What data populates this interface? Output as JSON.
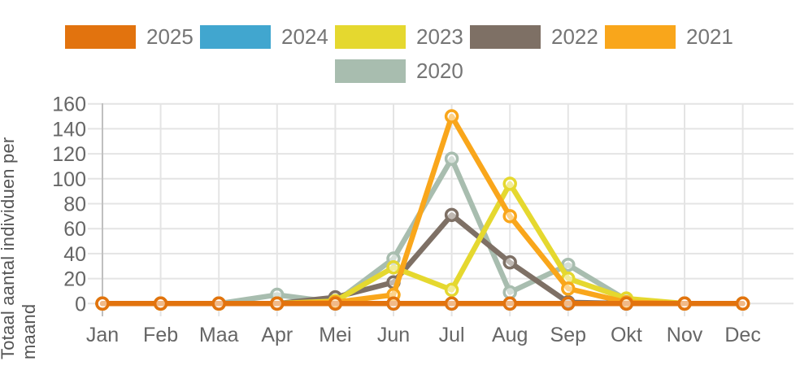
{
  "page": {
    "background": "#FFFFFF"
  },
  "legend": {
    "items": [
      {
        "label": "2025",
        "color": "#E2730E"
      },
      {
        "label": "2024",
        "color": "#41A6CF"
      },
      {
        "label": "2023",
        "color": "#E5D82F"
      },
      {
        "label": "2022",
        "color": "#7E7065"
      },
      {
        "label": "2021",
        "color": "#F9A61B"
      },
      {
        "label": "2020",
        "color": "#A8BDAF"
      }
    ]
  },
  "chart_data": {
    "type": "line",
    "title": "",
    "xlabel": "",
    "ylabel": "Totaal aantal individuen per maand",
    "categories": [
      "Jan",
      "Feb",
      "Maa",
      "Apr",
      "Mei",
      "Jun",
      "Jul",
      "Aug",
      "Sep",
      "Okt",
      "Nov",
      "Dec"
    ],
    "series": [
      {
        "name": "2025",
        "color": "#E2730E",
        "values": [
          0,
          0,
          0,
          0,
          0,
          0,
          0,
          0,
          0,
          0,
          0,
          0
        ]
      },
      {
        "name": "2024",
        "color": "#41A6CF",
        "values": [
          0,
          0,
          0,
          0,
          0,
          0,
          0,
          0,
          0,
          0,
          0,
          0
        ]
      },
      {
        "name": "2023",
        "color": "#E5D82F",
        "values": [
          0,
          0,
          0,
          0,
          2,
          29,
          11,
          96,
          20,
          4,
          0,
          0
        ]
      },
      {
        "name": "2022",
        "color": "#7E7065",
        "values": [
          0,
          0,
          0,
          0,
          5,
          17,
          71,
          33,
          1,
          0,
          0,
          0
        ]
      },
      {
        "name": "2021",
        "color": "#F9A61B",
        "values": [
          0,
          0,
          0,
          0,
          1,
          7,
          150,
          70,
          12,
          1,
          0,
          0
        ]
      },
      {
        "name": "2020",
        "color": "#A8BDAF",
        "values": [
          0,
          0,
          0,
          7,
          1,
          36,
          116,
          9,
          31,
          3,
          0,
          0
        ]
      }
    ],
    "ylim": [
      0,
      160
    ],
    "yticks": [
      0,
      20,
      40,
      60,
      80,
      100,
      120,
      140,
      160
    ],
    "grid": true,
    "legend_position": "top",
    "draw_order": [
      "2024",
      "2020",
      "2022",
      "2023",
      "2021",
      "2025"
    ],
    "style": {
      "grid_color": "#E4E4E4",
      "axis_line_color": "#C0C0C0",
      "tick_label_color": "#666666",
      "y_title_color": "#555555",
      "legend_label_color": "#757575"
    }
  }
}
